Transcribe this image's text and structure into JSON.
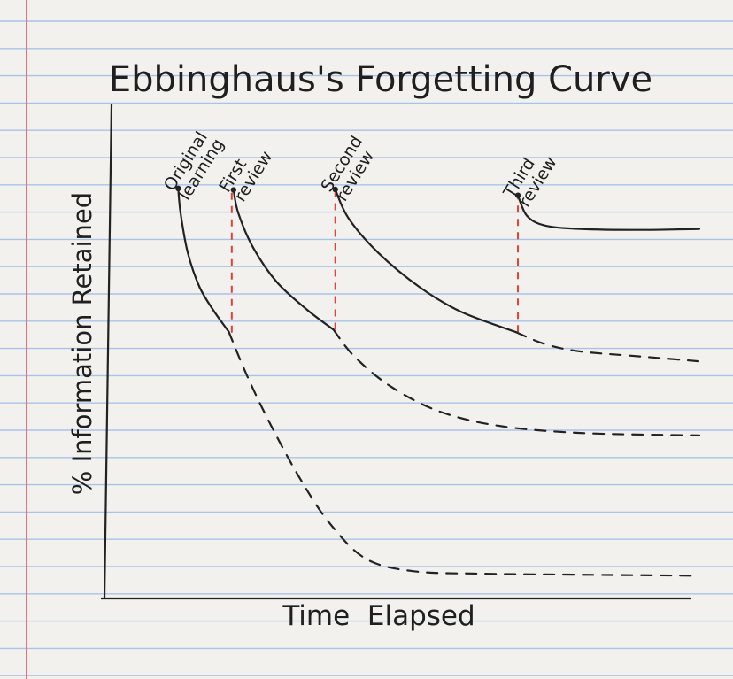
{
  "chart_data": {
    "type": "line",
    "title": "Ebbinghaus's Forgetting Curve",
    "xlabel": "Time  Elapsed",
    "ylabel": "% Information Retained",
    "xlim": [
      0,
      100
    ],
    "ylim": [
      0,
      100
    ],
    "grid": false,
    "legend": "none",
    "colors": {
      "ink": "#222222",
      "review_line": "#d9433a",
      "ruled_line": "#a9c3e8",
      "margin_line": "#e46f80",
      "paper": "#f2f1ed"
    },
    "annotations": [
      {
        "text": "Original\nlearning",
        "x": 12.4,
        "y": 83
      },
      {
        "text": "First\nreview",
        "x": 21.7,
        "y": 82.7
      },
      {
        "text": "Second\nreview",
        "x": 38.8,
        "y": 82.8
      },
      {
        "text": "Third\nreview",
        "x": 69.5,
        "y": 81.6
      }
    ],
    "review_markers": [
      {
        "x": 21.4,
        "from_y": 53.8,
        "to_y": 82.7
      },
      {
        "x": 38.8,
        "from_y": 54.4,
        "to_y": 82.8
      },
      {
        "x": 69.5,
        "from_y": 53.9,
        "to_y": 81.6
      }
    ],
    "series": [
      {
        "style": "solid",
        "points": [
          [
            12.4,
            83.0
          ],
          [
            12.8,
            78.0
          ],
          [
            14.0,
            70.0
          ],
          [
            16.0,
            63.0
          ],
          [
            18.5,
            58.0
          ],
          [
            20.9,
            54.0
          ]
        ]
      },
      {
        "style": "dashed",
        "points": [
          [
            20.9,
            54.0
          ],
          [
            24.0,
            45.0
          ],
          [
            28.0,
            35.0
          ],
          [
            33.0,
            24.0
          ],
          [
            38.0,
            15.0
          ],
          [
            44.0,
            8.0
          ],
          [
            52.0,
            5.5
          ],
          [
            64.0,
            5.0
          ],
          [
            80.0,
            4.8
          ],
          [
            100.0,
            4.6
          ]
        ]
      },
      {
        "style": "solid",
        "points": [
          [
            21.7,
            82.7
          ],
          [
            22.5,
            78.0
          ],
          [
            25.0,
            71.0
          ],
          [
            29.0,
            64.0
          ],
          [
            34.0,
            58.5
          ],
          [
            38.5,
            54.4
          ]
        ]
      },
      {
        "style": "dashed",
        "points": [
          [
            38.5,
            54.4
          ],
          [
            42.0,
            49.0
          ],
          [
            48.0,
            43.0
          ],
          [
            56.0,
            38.0
          ],
          [
            66.0,
            35.0
          ],
          [
            80.0,
            33.5
          ],
          [
            100.0,
            33.0
          ]
        ]
      },
      {
        "style": "solid",
        "points": [
          [
            38.8,
            82.8
          ],
          [
            41.0,
            77.0
          ],
          [
            46.0,
            70.0
          ],
          [
            53.0,
            63.0
          ],
          [
            60.0,
            58.0
          ],
          [
            69.2,
            53.9
          ]
        ]
      },
      {
        "style": "dashed",
        "points": [
          [
            69.2,
            53.9
          ],
          [
            74.0,
            51.5
          ],
          [
            80.0,
            50.0
          ],
          [
            90.0,
            49.0
          ],
          [
            100.0,
            48.0
          ]
        ]
      },
      {
        "style": "solid",
        "points": [
          [
            69.5,
            81.6
          ],
          [
            71.0,
            77.5
          ],
          [
            74.0,
            75.5
          ],
          [
            80.0,
            74.8
          ],
          [
            90.0,
            74.6
          ],
          [
            100.0,
            74.8
          ]
        ]
      }
    ]
  }
}
